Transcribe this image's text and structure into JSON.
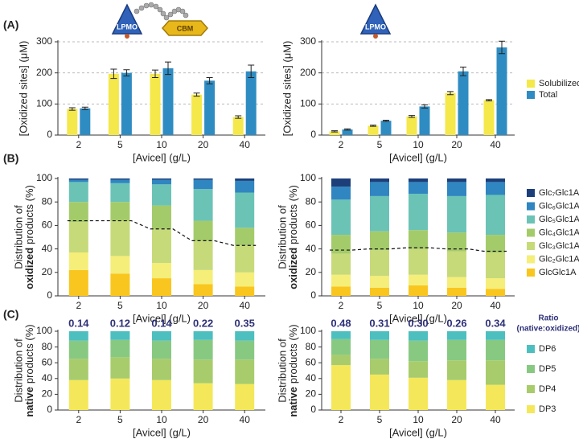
{
  "panel_labels": [
    "(A)",
    "(B)",
    "(C)"
  ],
  "icon_labels": [
    "LPMO",
    "CBM",
    "LPMO"
  ],
  "chart_data": [
    {
      "type": "bar",
      "categories": [
        "2",
        "5",
        "10",
        "20",
        "40"
      ],
      "xlabel": "[Avicel] (g/L)",
      "ylabel": "[Oxidized sites] (μM)",
      "ylim": [
        0,
        300
      ],
      "yticks": [
        0,
        100,
        200,
        300
      ],
      "grid": true,
      "series": [
        {
          "color": "#f4e84a",
          "values": [
            84,
            197,
            197,
            130,
            58
          ],
          "errors": [
            4,
            15,
            12,
            5,
            4
          ]
        },
        {
          "color": "#2f8cc2",
          "values": [
            86,
            200,
            215,
            175,
            205
          ],
          "errors": [
            4,
            10,
            20,
            10,
            20
          ]
        }
      ]
    },
    {
      "type": "bar",
      "categories": [
        "2",
        "5",
        "10",
        "20",
        "40"
      ],
      "xlabel": "[Avicel] (g/L)",
      "ylabel": "[Oxidized sites] (μM)",
      "ylim": [
        0,
        300
      ],
      "yticks": [
        0,
        100,
        200,
        300
      ],
      "grid": true,
      "legend": "right",
      "series": [
        {
          "name": "Solubilized",
          "color": "#f4e84a",
          "values": [
            12,
            30,
            60,
            135,
            112
          ],
          "errors": [
            2,
            2,
            3,
            5,
            2
          ]
        },
        {
          "name": "Total",
          "color": "#2f8cc2",
          "values": [
            18,
            46,
            92,
            205,
            282
          ],
          "errors": [
            2,
            2,
            5,
            14,
            20
          ]
        }
      ]
    },
    {
      "type": "stacked_bar",
      "categories": [
        "2",
        "5",
        "10",
        "20",
        "40"
      ],
      "xlabel": "[Avicel] (g/L)",
      "ylabel": [
        "Distribution of",
        "oxidized",
        "products (%)"
      ],
      "ylim": [
        0,
        100
      ],
      "yticks": [
        0,
        20,
        40,
        60,
        80,
        100
      ],
      "grid": false,
      "series": [
        {
          "color": "#f8c61e",
          "values": [
            22,
            19,
            15,
            10,
            8
          ]
        },
        {
          "color": "#f5ee78",
          "values": [
            15,
            15,
            13,
            12,
            12
          ]
        },
        {
          "color": "#c6da7a",
          "values": [
            26,
            30,
            29,
            25,
            23
          ]
        },
        {
          "color": "#a4cb6a",
          "values": [
            17,
            16,
            20,
            17,
            15
          ]
        },
        {
          "color": "#6bc3b6",
          "values": [
            17,
            16,
            18,
            27,
            30
          ]
        },
        {
          "color": "#2f86c1",
          "values": [
            2,
            3,
            4,
            8,
            10
          ]
        },
        {
          "color": "#1c3f7a",
          "values": [
            1,
            1,
            1,
            1,
            2
          ]
        }
      ],
      "trend": {
        "values": [
          64,
          64,
          57,
          47,
          43
        ],
        "style": "dashed"
      }
    },
    {
      "type": "stacked_bar",
      "categories": [
        "2",
        "5",
        "10",
        "20",
        "40"
      ],
      "xlabel": "[Avicel] (g/L)",
      "ylabel": [
        "Distribution of",
        "oxidized",
        "products (%)"
      ],
      "ylim": [
        0,
        100
      ],
      "yticks": [
        0,
        20,
        40,
        60,
        80,
        100
      ],
      "grid": false,
      "legend": "right",
      "series": [
        {
          "name": "GlcGlc1A",
          "color": "#f8c61e",
          "values": [
            8,
            7,
            9,
            7,
            6
          ]
        },
        {
          "name": "Glc₂Glc1A",
          "color": "#f5ee78",
          "values": [
            10,
            10,
            9,
            9,
            9
          ]
        },
        {
          "name": "Glc₃Glc1A",
          "color": "#c6da7a",
          "values": [
            18,
            22,
            22,
            22,
            22
          ]
        },
        {
          "name": "Glc₄Glc1A",
          "color": "#a4cb6a",
          "values": [
            16,
            16,
            16,
            16,
            15
          ]
        },
        {
          "name": "Glc₅Glc1A",
          "color": "#6bc3b6",
          "values": [
            30,
            30,
            31,
            31,
            34
          ]
        },
        {
          "name": "Glc₆Glc1A",
          "color": "#2f86c1",
          "values": [
            11,
            12,
            10,
            12,
            11
          ]
        },
        {
          "name": "Glc₇Glc1A",
          "color": "#1c3f7a",
          "values": [
            7,
            3,
            3,
            3,
            3
          ]
        }
      ],
      "trend": {
        "values": [
          39,
          40,
          41,
          40,
          38
        ],
        "style": "dashed"
      }
    },
    {
      "type": "stacked_bar",
      "categories": [
        "2",
        "5",
        "10",
        "20",
        "40"
      ],
      "xlabel": "[Avicel] (g/L)",
      "ylabel": [
        "Distribution of",
        "native",
        "products (%)"
      ],
      "ylim": [
        0,
        100
      ],
      "yticks": [
        0,
        20,
        40,
        60,
        80,
        100
      ],
      "grid": false,
      "series": [
        {
          "color": "#f4e85a",
          "values": [
            38,
            40,
            38,
            34,
            33
          ]
        },
        {
          "color": "#a8cc6b",
          "values": [
            27,
            27,
            27,
            30,
            31
          ]
        },
        {
          "color": "#88c982",
          "values": [
            23,
            22,
            23,
            25,
            24
          ]
        },
        {
          "color": "#4dbfbf",
          "values": [
            12,
            11,
            12,
            11,
            12
          ]
        }
      ],
      "ratios": {
        "values": [
          0.14,
          0.12,
          0.14,
          0.22,
          0.35
        ],
        "value_labels": [
          "0.14",
          "0.12",
          "0.14",
          "0.22",
          "0.35"
        ]
      }
    },
    {
      "type": "stacked_bar",
      "categories": [
        "2",
        "5",
        "10",
        "20",
        "40"
      ],
      "xlabel": "[Avicel] (g/L)",
      "ylabel": [
        "Distribution of",
        "native",
        "products (%)"
      ],
      "ylim": [
        0,
        100
      ],
      "yticks": [
        0,
        20,
        40,
        60,
        80,
        100
      ],
      "grid": false,
      "legend": "right",
      "series": [
        {
          "name": "DP3",
          "color": "#f4e85a",
          "values": [
            57,
            45,
            41,
            38,
            32
          ]
        },
        {
          "name": "DP4",
          "color": "#a8cc6b",
          "values": [
            13,
            20,
            21,
            25,
            31
          ]
        },
        {
          "name": "DP5",
          "color": "#88c982",
          "values": [
            20,
            24,
            26,
            26,
            26
          ]
        },
        {
          "name": "DP6",
          "color": "#4dbfbf",
          "values": [
            10,
            11,
            12,
            11,
            11
          ]
        }
      ],
      "ratios": {
        "values": [
          0.48,
          0.31,
          0.3,
          0.26,
          0.34
        ],
        "value_labels": [
          "0.48",
          "0.31",
          "0.30",
          "0.26",
          "0.34"
        ],
        "title": [
          "Ratio",
          "(native:oxidized)"
        ]
      }
    }
  ]
}
